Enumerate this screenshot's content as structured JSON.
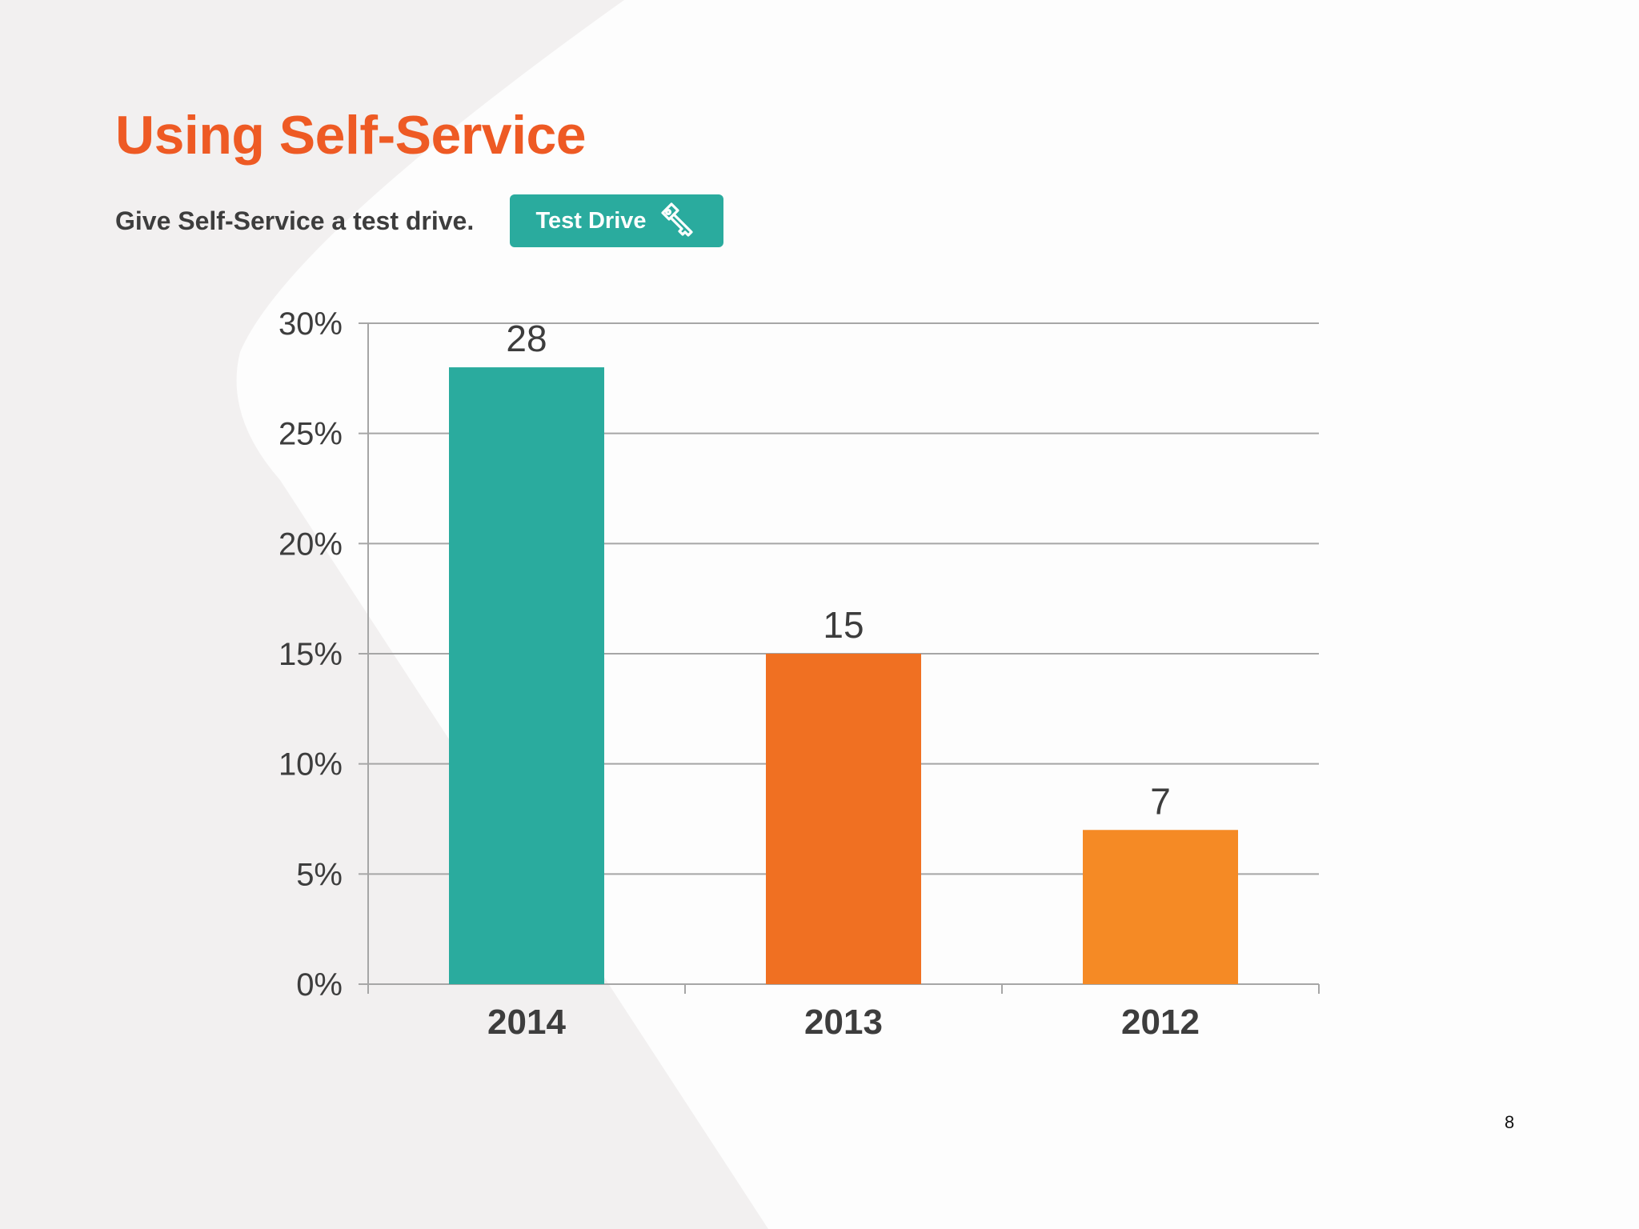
{
  "slide": {
    "title": "Using Self-Service",
    "subtitle": "Give Self-Service a test drive.",
    "cta": {
      "label": "Test Drive",
      "icon": "key-icon"
    },
    "page_number": "8"
  },
  "colors": {
    "accent": "#ee5a24",
    "teal": "#2aab9e",
    "text": "#3d3d3d"
  },
  "chart_data": {
    "type": "bar",
    "title": "",
    "xlabel": "",
    "ylabel": "",
    "categories": [
      "2014",
      "2013",
      "2012"
    ],
    "values": [
      28,
      15,
      7
    ],
    "value_labels": [
      "28",
      "15",
      "7"
    ],
    "bar_colors": [
      "#2aab9e",
      "#f07022",
      "#f58a25"
    ],
    "ylim": [
      0,
      30
    ],
    "yticks": [
      0,
      5,
      10,
      15,
      20,
      25,
      30
    ],
    "ytick_labels": [
      "0%",
      "5%",
      "10%",
      "15%",
      "20%",
      "25%",
      "30%"
    ],
    "grid": true,
    "legend": "none"
  }
}
